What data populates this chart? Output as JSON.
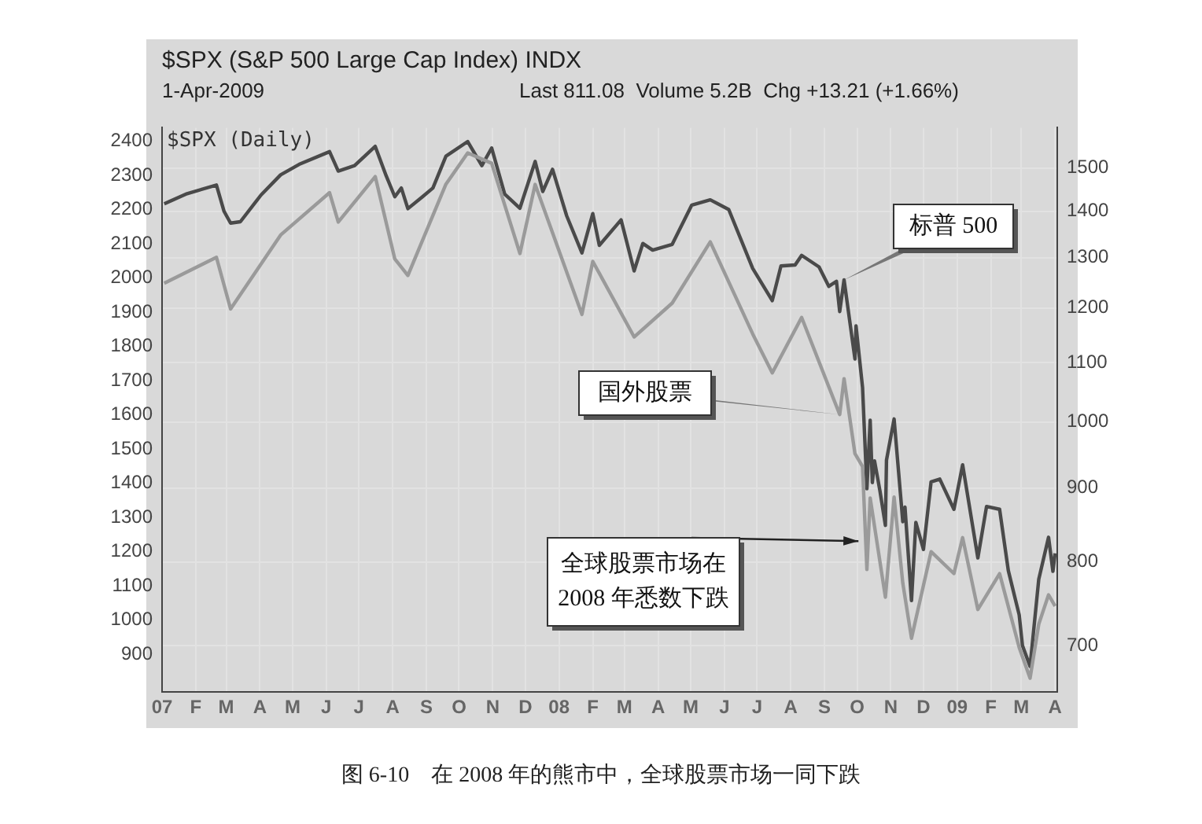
{
  "chart_data": {
    "type": "line",
    "title": "$SPX (S&P 500 Large Cap Index) INDX",
    "subtitle": "1-Apr-2009",
    "annotations": [
      "Last 811.08  Volume 5.2B  Chg +13.21 (+1.66%)",
      "$SPX (Daily)",
      {
        "text": "全球股票市场在\n2008 年悉数下跌",
        "x": "2008-10-08",
        "y": 1240
      },
      "图 6-10　在 2008 年的熊市中，全球股票市场一同下跌"
    ],
    "xlim": [
      "2007-01-01",
      "2009-04-03"
    ],
    "xticks": [
      {
        "value": "2007-01-01",
        "label": "07"
      },
      {
        "value": "2007-02-01",
        "label": "F"
      },
      {
        "value": "2007-03-01",
        "label": "M"
      },
      {
        "value": "2007-04-01",
        "label": "A"
      },
      {
        "value": "2007-05-01",
        "label": "M"
      },
      {
        "value": "2007-06-01",
        "label": "J"
      },
      {
        "value": "2007-07-01",
        "label": "J"
      },
      {
        "value": "2007-08-01",
        "label": "A"
      },
      {
        "value": "2007-09-01",
        "label": "S"
      },
      {
        "value": "2007-10-01",
        "label": "O"
      },
      {
        "value": "2007-11-01",
        "label": "N"
      },
      {
        "value": "2007-12-01",
        "label": "D"
      },
      {
        "value": "2008-01-01",
        "label": "08"
      },
      {
        "value": "2008-02-01",
        "label": "F"
      },
      {
        "value": "2008-03-01",
        "label": "M"
      },
      {
        "value": "2008-04-01",
        "label": "A"
      },
      {
        "value": "2008-05-01",
        "label": "M"
      },
      {
        "value": "2008-06-01",
        "label": "J"
      },
      {
        "value": "2008-07-01",
        "label": "J"
      },
      {
        "value": "2008-08-01",
        "label": "A"
      },
      {
        "value": "2008-09-01",
        "label": "S"
      },
      {
        "value": "2008-10-01",
        "label": "O"
      },
      {
        "value": "2008-11-01",
        "label": "N"
      },
      {
        "value": "2008-12-01",
        "label": "D"
      },
      {
        "value": "2009-01-01",
        "label": "09"
      },
      {
        "value": "2009-02-01",
        "label": "F"
      },
      {
        "value": "2009-03-01",
        "label": "M"
      },
      {
        "value": "2009-04-01",
        "label": "A"
      }
    ],
    "ylim": [
      790,
      2440
    ],
    "yticks": [
      900,
      1000,
      1100,
      1200,
      1300,
      1400,
      1500,
      1600,
      1700,
      1800,
      1900,
      2000,
      2100,
      2200,
      2300,
      2400
    ],
    "y2lim": [
      650,
      1600
    ],
    "y2ticks": [
      700,
      800,
      900,
      1000,
      1100,
      1200,
      1300,
      1400,
      1500
    ],
    "log": "y2",
    "grid": true,
    "legend": false,
    "line_style": "solid",
    "marker": "none",
    "series": [
      {
        "name": "国外股票",
        "color": "#9a9a9a",
        "axis": "y",
        "x": [
          "2007-01-03",
          "2007-02-20",
          "2007-03-05",
          "2007-04-20",
          "2007-06-04",
          "2007-06-12",
          "2007-07-16",
          "2007-08-03",
          "2007-08-15",
          "2007-09-19",
          "2007-10-09",
          "2007-10-31",
          "2007-11-26",
          "2007-12-10",
          "2008-01-22",
          "2008-02-01",
          "2008-03-10",
          "2008-04-14",
          "2008-05-19",
          "2008-06-27",
          "2008-07-15",
          "2008-08-11",
          "2008-09-15",
          "2008-09-19",
          "2008-09-29",
          "2008-10-06",
          "2008-10-10",
          "2008-10-13",
          "2008-10-27",
          "2008-11-04",
          "2008-11-12",
          "2008-11-20",
          "2008-12-08",
          "2008-12-29",
          "2009-01-06",
          "2009-01-20",
          "2009-02-09",
          "2009-02-27",
          "2009-03-09",
          "2009-03-17",
          "2009-03-26",
          "2009-04-01"
        ],
        "values": [
          1985,
          2061,
          1910,
          2126,
          2250,
          2164,
          2297,
          2056,
          2008,
          2275,
          2366,
          2336,
          2072,
          2274,
          1894,
          2049,
          1828,
          1927,
          2106,
          1837,
          1723,
          1885,
          1601,
          1706,
          1487,
          1449,
          1148,
          1357,
          1067,
          1360,
          1108,
          947,
          1200,
          1136,
          1241,
          1031,
          1136,
          920,
          830,
          988,
          1074,
          1041
        ]
      },
      {
        "name": "标普 500",
        "color": "#4a4a4a",
        "axis": "y2",
        "x": [
          "2007-01-03",
          "2007-01-24",
          "2007-02-20",
          "2007-02-27",
          "2007-03-05",
          "2007-03-14",
          "2007-04-02",
          "2007-04-20",
          "2007-05-07",
          "2007-06-04",
          "2007-06-12",
          "2007-06-27",
          "2007-07-16",
          "2007-07-26",
          "2007-08-03",
          "2007-08-09",
          "2007-08-15",
          "2007-08-28",
          "2007-09-07",
          "2007-09-19",
          "2007-10-09",
          "2007-10-22",
          "2007-10-31",
          "2007-11-12",
          "2007-11-26",
          "2007-12-10",
          "2007-12-17",
          "2007-12-26",
          "2008-01-08",
          "2008-01-22",
          "2008-02-01",
          "2008-02-07",
          "2008-02-27",
          "2008-03-10",
          "2008-03-18",
          "2008-03-27",
          "2008-04-14",
          "2008-05-02",
          "2008-05-19",
          "2008-06-05",
          "2008-06-27",
          "2008-07-15",
          "2008-07-23",
          "2008-08-05",
          "2008-08-11",
          "2008-08-27",
          "2008-09-05",
          "2008-09-12",
          "2008-09-15",
          "2008-09-19",
          "2008-09-29",
          "2008-09-30",
          "2008-10-06",
          "2008-10-10",
          "2008-10-13",
          "2008-10-15",
          "2008-10-17",
          "2008-10-22",
          "2008-10-27",
          "2008-10-28",
          "2008-11-04",
          "2008-11-12",
          "2008-11-14",
          "2008-11-20",
          "2008-11-24",
          "2008-12-01",
          "2008-12-08",
          "2008-12-16",
          "2008-12-29",
          "2009-01-06",
          "2009-01-20",
          "2009-01-28",
          "2009-02-09",
          "2009-02-17",
          "2009-02-27",
          "2009-03-02",
          "2009-03-09",
          "2009-03-17",
          "2009-03-26",
          "2009-03-30",
          "2009-04-01"
        ],
        "values": [
          1417,
          1440,
          1460,
          1400,
          1374,
          1377,
          1437,
          1484,
          1509,
          1540,
          1493,
          1506,
          1553,
          1482,
          1433,
          1453,
          1406,
          1432,
          1453,
          1529,
          1565,
          1506,
          1549,
          1439,
          1407,
          1516,
          1445,
          1497,
          1390,
          1310,
          1395,
          1326,
          1381,
          1273,
          1330,
          1316,
          1328,
          1414,
          1426,
          1404,
          1278,
          1214,
          1283,
          1285,
          1305,
          1281,
          1242,
          1252,
          1193,
          1255,
          1106,
          1166,
          1057,
          899,
          1003,
          908,
          940,
          896,
          848,
          941,
          1005,
          853,
          873,
          752,
          852,
          816,
          909,
          913,
          870,
          934,
          805,
          874,
          870,
          789,
          735,
          700,
          677,
          778,
          832,
          788,
          811
        ]
      }
    ]
  }
}
